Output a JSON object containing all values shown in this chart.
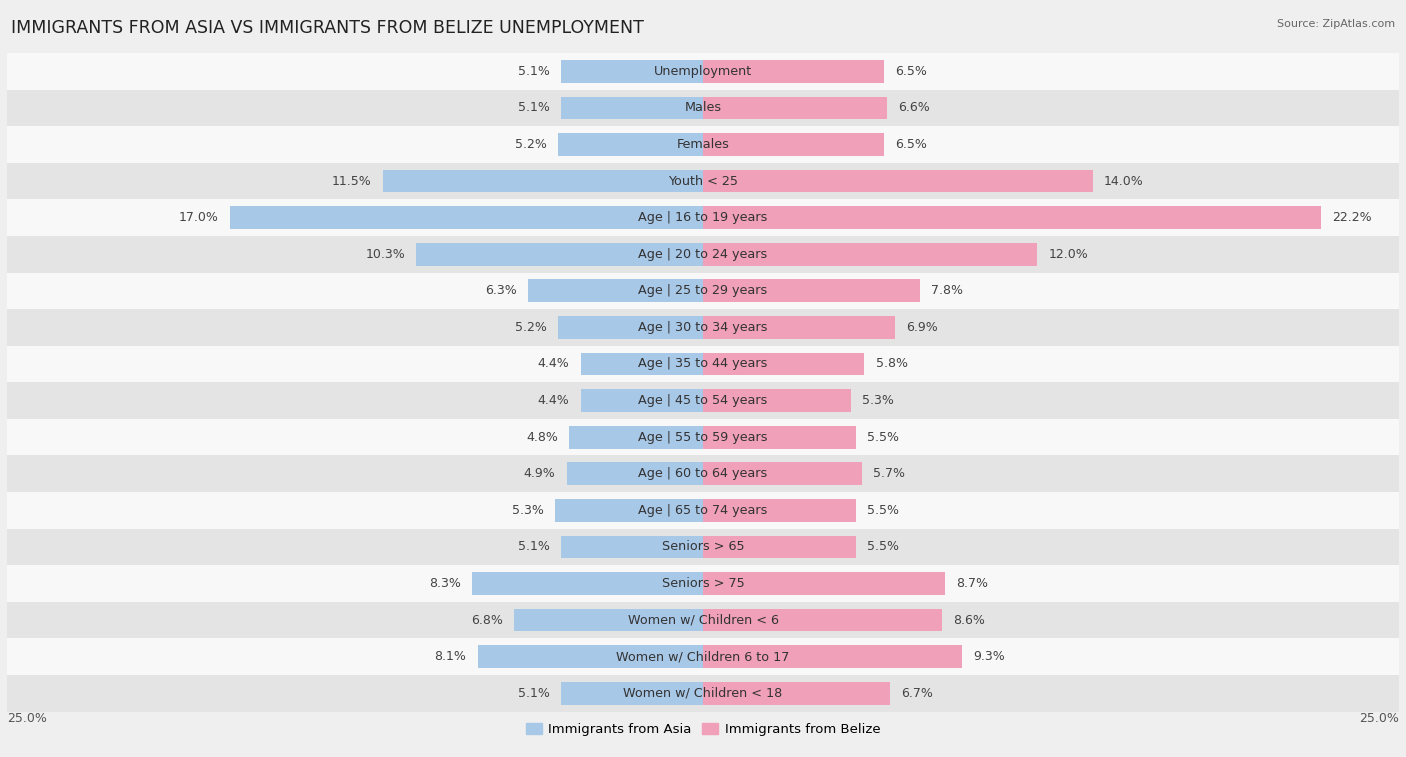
{
  "title": "IMMIGRANTS FROM ASIA VS IMMIGRANTS FROM BELIZE UNEMPLOYMENT",
  "source": "Source: ZipAtlas.com",
  "categories": [
    "Unemployment",
    "Males",
    "Females",
    "Youth < 25",
    "Age | 16 to 19 years",
    "Age | 20 to 24 years",
    "Age | 25 to 29 years",
    "Age | 30 to 34 years",
    "Age | 35 to 44 years",
    "Age | 45 to 54 years",
    "Age | 55 to 59 years",
    "Age | 60 to 64 years",
    "Age | 65 to 74 years",
    "Seniors > 65",
    "Seniors > 75",
    "Women w/ Children < 6",
    "Women w/ Children 6 to 17",
    "Women w/ Children < 18"
  ],
  "asia_values": [
    5.1,
    5.1,
    5.2,
    11.5,
    17.0,
    10.3,
    6.3,
    5.2,
    4.4,
    4.4,
    4.8,
    4.9,
    5.3,
    5.1,
    8.3,
    6.8,
    8.1,
    5.1
  ],
  "belize_values": [
    6.5,
    6.6,
    6.5,
    14.0,
    22.2,
    12.0,
    7.8,
    6.9,
    5.8,
    5.3,
    5.5,
    5.7,
    5.5,
    5.5,
    8.7,
    8.6,
    9.3,
    6.7
  ],
  "asia_color": "#a8c8e8",
  "belize_color": "#f0a0b8",
  "axis_max": 25.0,
  "bar_height": 0.62,
  "bg_color": "#efefef",
  "row_bg_light": "#f8f8f8",
  "row_bg_dark": "#e4e4e4",
  "label_fontsize": 9.2,
  "title_fontsize": 12.5,
  "value_fontsize": 9.0,
  "legend_fontsize": 9.5
}
